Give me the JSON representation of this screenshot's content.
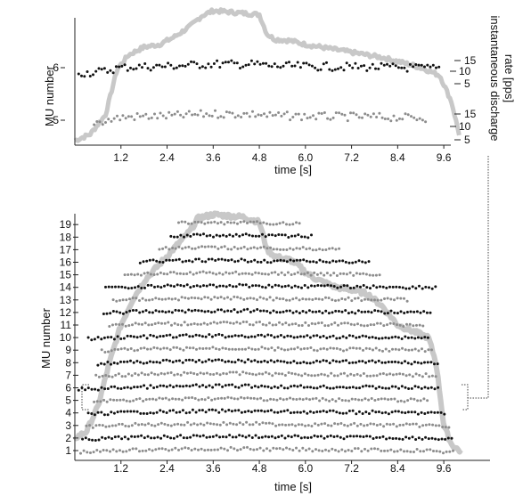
{
  "chart_data": [
    {
      "type": "scatter",
      "panel": "top",
      "xlabel": "time [s]",
      "ylabel": "MU number",
      "y2label_line1": "instantaneous discharge",
      "y2label_line2": "rate [pps]",
      "xlim": [
        0,
        10.2
      ],
      "x_ticks": [
        "1.2",
        "2.4",
        "3.6",
        "4.8",
        "6.0",
        "7.2",
        "8.4",
        "9.6"
      ],
      "y_ticks": [
        "5",
        "6"
      ],
      "rate_ticks": [
        "15",
        "10",
        "5",
        "15",
        "10",
        "5"
      ],
      "force_envelope": {
        "color": "#c8c8c8",
        "x": [
          0.0,
          0.4,
          0.8,
          1.1,
          1.4,
          1.8,
          2.2,
          2.6,
          3.0,
          3.3,
          3.6,
          4.0,
          4.4,
          4.8,
          5.0,
          5.2,
          5.6,
          6.0,
          6.4,
          6.8,
          7.2,
          7.6,
          8.0,
          8.4,
          8.8,
          9.2,
          9.5,
          9.8,
          10.0
        ],
        "y": [
          0.0,
          0.05,
          0.2,
          0.55,
          0.66,
          0.72,
          0.74,
          0.8,
          0.88,
          0.96,
          1.0,
          0.99,
          0.98,
          0.97,
          0.82,
          0.78,
          0.77,
          0.74,
          0.72,
          0.7,
          0.68,
          0.66,
          0.64,
          0.61,
          0.58,
          0.54,
          0.5,
          0.3,
          0.05
        ]
      },
      "series": [
        {
          "mu": 6,
          "color": "#111111",
          "t_start": 0.1,
          "t_end": 9.5,
          "rate_pps": 13
        },
        {
          "mu": 5,
          "color": "#8c8c8c",
          "t_start": 0.5,
          "t_end": 9.2,
          "rate_pps": 11
        }
      ]
    },
    {
      "type": "scatter",
      "panel": "bottom",
      "xlabel": "time [s]",
      "ylabel": "MU number",
      "xlim": [
        0,
        10.2
      ],
      "x_ticks": [
        "1.2",
        "2.4",
        "3.6",
        "4.8",
        "6.0",
        "7.2",
        "8.4",
        "9.6"
      ],
      "y_ticks": [
        "1",
        "2",
        "3",
        "4",
        "5",
        "6",
        "7",
        "8",
        "9",
        "10",
        "11",
        "12",
        "13",
        "14",
        "15",
        "16",
        "17",
        "18",
        "19"
      ],
      "force_envelope": {
        "color": "#c8c8c8",
        "x": [
          0.0,
          0.3,
          0.6,
          0.9,
          1.2,
          1.5,
          1.8,
          2.1,
          2.4,
          2.7,
          3.0,
          3.2,
          3.6,
          4.0,
          4.4,
          4.8,
          5.0,
          5.2,
          5.4,
          5.6,
          5.8,
          6.0,
          6.2,
          6.4,
          6.8,
          7.2,
          7.6,
          8.0,
          8.4,
          8.8,
          9.2,
          9.4,
          9.6,
          9.8,
          10.0
        ],
        "y": [
          2.0,
          2.5,
          4.5,
          8.0,
          11.0,
          13.0,
          14.5,
          15.5,
          16.5,
          17.5,
          18.5,
          19.5,
          19.8,
          19.7,
          19.6,
          19.2,
          17.0,
          16.5,
          16.3,
          16.2,
          15.8,
          15.2,
          14.8,
          14.5,
          14.0,
          13.8,
          13.5,
          12.5,
          11.0,
          10.5,
          10.0,
          8.0,
          3.0,
          1.5,
          1.0
        ]
      },
      "series": [
        {
          "mu": 1,
          "color": "#8c8c8c",
          "t_start": 0.15,
          "t_end": 9.9
        },
        {
          "mu": 2,
          "color": "#111111",
          "t_start": 0.2,
          "t_end": 9.85
        },
        {
          "mu": 3,
          "color": "#8c8c8c",
          "t_start": 0.3,
          "t_end": 9.8
        },
        {
          "mu": 4,
          "color": "#111111",
          "t_start": 0.35,
          "t_end": 9.7
        },
        {
          "mu": 5,
          "color": "#8c8c8c",
          "t_start": 0.5,
          "t_end": 9.2
        },
        {
          "mu": 6,
          "color": "#111111",
          "t_start": 0.1,
          "t_end": 9.5
        },
        {
          "mu": 7,
          "color": "#8c8c8c",
          "t_start": 0.55,
          "t_end": 9.4
        },
        {
          "mu": 8,
          "color": "#111111",
          "t_start": 0.6,
          "t_end": 9.5
        },
        {
          "mu": 9,
          "color": "#8c8c8c",
          "t_start": 0.7,
          "t_end": 9.3
        },
        {
          "mu": 10,
          "color": "#111111",
          "t_start": 0.35,
          "t_end": 9.2
        },
        {
          "mu": 11,
          "color": "#8c8c8c",
          "t_start": 0.9,
          "t_end": 9.1
        },
        {
          "mu": 12,
          "color": "#111111",
          "t_start": 0.75,
          "t_end": 9.3
        },
        {
          "mu": 13,
          "color": "#8c8c8c",
          "t_start": 1.0,
          "t_end": 8.7
        },
        {
          "mu": 14,
          "color": "#111111",
          "t_start": 0.8,
          "t_end": 9.4
        },
        {
          "mu": 15,
          "color": "#8c8c8c",
          "t_start": 1.3,
          "t_end": 8.0
        },
        {
          "mu": 16,
          "color": "#111111",
          "t_start": 1.7,
          "t_end": 7.7
        },
        {
          "mu": 17,
          "color": "#8c8c8c",
          "t_start": 2.2,
          "t_end": 6.9
        },
        {
          "mu": 18,
          "color": "#111111",
          "t_start": 2.5,
          "t_end": 6.2
        },
        {
          "mu": 19,
          "color": "#8c8c8c",
          "t_start": 2.7,
          "t_end": 5.9
        }
      ]
    }
  ]
}
